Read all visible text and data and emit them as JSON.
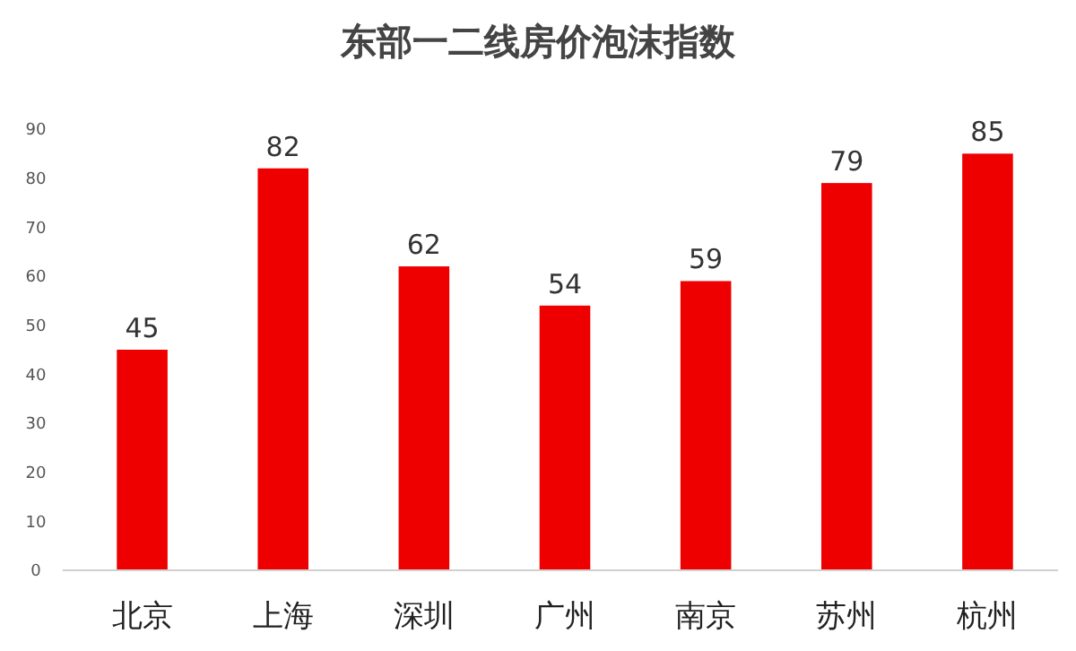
{
  "chart_data": {
    "type": "bar",
    "title": "东部一二线房价泡沫指数",
    "categories": [
      "北京",
      "上海",
      "深圳",
      "广州",
      "南京",
      "苏州",
      "杭州"
    ],
    "values": [
      45,
      82,
      62,
      54,
      59,
      79,
      85
    ],
    "color": "#ee0000",
    "ylim": [
      0,
      90
    ],
    "yticks": [
      0,
      10,
      20,
      30,
      40,
      50,
      60,
      70,
      80,
      90
    ],
    "grid": false,
    "data_labels": true
  }
}
